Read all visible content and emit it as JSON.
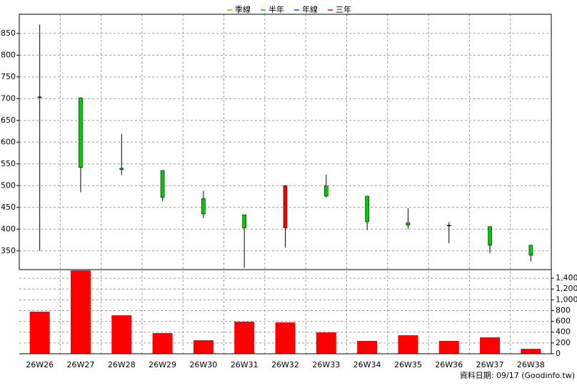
{
  "chart_data": {
    "type": "candlestick",
    "legend": [
      {
        "name": "季線",
        "color": "#ff8000"
      },
      {
        "name": "半年",
        "color": "#00cc00"
      },
      {
        "name": "年線",
        "color": "#0050ff"
      },
      {
        "name": "三年",
        "color": "#ff0000"
      }
    ],
    "categories": [
      "26W26",
      "26W27",
      "26W28",
      "26W29",
      "26W30",
      "26W31",
      "26W32",
      "26W33",
      "26W34",
      "26W35",
      "26W36",
      "26W37",
      "26W38"
    ],
    "open": [
      704,
      702,
      540,
      535,
      470,
      433,
      403,
      499,
      476,
      415,
      409,
      406,
      363
    ],
    "high": [
      870,
      702,
      619,
      535,
      488,
      433,
      500,
      525,
      476,
      448,
      416,
      406,
      363
    ],
    "low": [
      350,
      485,
      525,
      465,
      425,
      311,
      358,
      473,
      398,
      401,
      368,
      345,
      326
    ],
    "close": [
      704,
      542,
      537,
      473,
      435,
      403,
      500,
      476,
      417,
      409,
      409,
      363,
      340
    ],
    "up_color": "#ff0000",
    "down_color": "#00cc00",
    "flat_color": "#000000",
    "ylim": [
      307,
      894
    ],
    "yticks": [
      350,
      400,
      450,
      500,
      550,
      600,
      650,
      700,
      750,
      800,
      850
    ],
    "grid": true,
    "volume": {
      "values": [
        780,
        1545,
        713,
        383,
        251,
        594,
        581,
        396,
        238,
        343,
        238,
        304,
        92
      ],
      "color": "#ff0000",
      "ylim": [
        0,
        1560
      ],
      "yticks": [
        0,
        200,
        400,
        600,
        800,
        {
          "value": 1000,
          "label": "1,000"
        },
        {
          "value": 1200,
          "label": "1,200"
        },
        {
          "value": 1400,
          "label": "1,400"
        }
      ]
    },
    "note": "資料日期: 09/17  (Goodinfo.tw)"
  }
}
